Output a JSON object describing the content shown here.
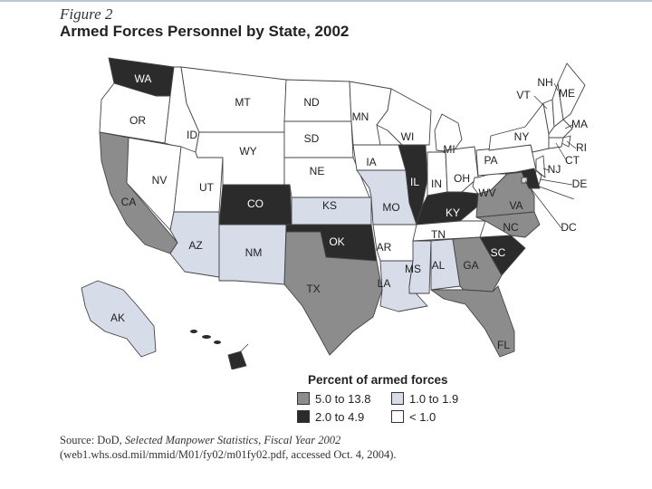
{
  "figure_label": "Figure 2",
  "title": "Armed Forces Personnel by State, 2002",
  "colors": {
    "dark": "#2b2b2b",
    "medium": "#8c8c8c",
    "light": "#d6dde8",
    "white": "#ffffff",
    "stroke": "#444444"
  },
  "legend": {
    "title": "Percent of armed forces",
    "items": [
      {
        "label": "5.0 to 13.8",
        "category": "medium"
      },
      {
        "label": "2.0 to 4.9",
        "category": "dark"
      },
      {
        "label": "1.0 to 1.9",
        "category": "light"
      },
      {
        "label": "< 1.0",
        "category": "white"
      }
    ]
  },
  "states": [
    {
      "abbr": "WA",
      "category": "dark"
    },
    {
      "abbr": "OR",
      "category": "white"
    },
    {
      "abbr": "CA",
      "category": "medium"
    },
    {
      "abbr": "ID",
      "category": "white"
    },
    {
      "abbr": "NV",
      "category": "white"
    },
    {
      "abbr": "UT",
      "category": "white"
    },
    {
      "abbr": "AZ",
      "category": "light"
    },
    {
      "abbr": "MT",
      "category": "white"
    },
    {
      "abbr": "WY",
      "category": "white"
    },
    {
      "abbr": "CO",
      "category": "dark"
    },
    {
      "abbr": "NM",
      "category": "light"
    },
    {
      "abbr": "ND",
      "category": "white"
    },
    {
      "abbr": "SD",
      "category": "white"
    },
    {
      "abbr": "NE",
      "category": "white"
    },
    {
      "abbr": "KS",
      "category": "light"
    },
    {
      "abbr": "OK",
      "category": "dark"
    },
    {
      "abbr": "TX",
      "category": "medium"
    },
    {
      "abbr": "MN",
      "category": "white"
    },
    {
      "abbr": "IA",
      "category": "white"
    },
    {
      "abbr": "MO",
      "category": "light"
    },
    {
      "abbr": "AR",
      "category": "white"
    },
    {
      "abbr": "LA",
      "category": "light"
    },
    {
      "abbr": "WI",
      "category": "white"
    },
    {
      "abbr": "IL",
      "category": "dark"
    },
    {
      "abbr": "MI",
      "category": "white"
    },
    {
      "abbr": "IN",
      "category": "white"
    },
    {
      "abbr": "OH",
      "category": "white"
    },
    {
      "abbr": "KY",
      "category": "dark"
    },
    {
      "abbr": "TN",
      "category": "white"
    },
    {
      "abbr": "MS",
      "category": "light"
    },
    {
      "abbr": "AL",
      "category": "light"
    },
    {
      "abbr": "GA",
      "category": "medium"
    },
    {
      "abbr": "FL",
      "category": "medium"
    },
    {
      "abbr": "SC",
      "category": "dark"
    },
    {
      "abbr": "NC",
      "category": "medium"
    },
    {
      "abbr": "VA",
      "category": "medium"
    },
    {
      "abbr": "WV",
      "category": "white"
    },
    {
      "abbr": "PA",
      "category": "white"
    },
    {
      "abbr": "NY",
      "category": "white"
    },
    {
      "abbr": "VT",
      "category": "white"
    },
    {
      "abbr": "NH",
      "category": "white"
    },
    {
      "abbr": "ME",
      "category": "white"
    },
    {
      "abbr": "MA",
      "category": "white"
    },
    {
      "abbr": "RI",
      "category": "white"
    },
    {
      "abbr": "CT",
      "category": "white"
    },
    {
      "abbr": "NJ",
      "category": "white"
    },
    {
      "abbr": "DE",
      "category": "white"
    },
    {
      "abbr": "MD",
      "category": "dark"
    },
    {
      "abbr": "DC",
      "category": "light"
    },
    {
      "abbr": "AK",
      "category": "light"
    },
    {
      "abbr": "HI",
      "category": "dark"
    }
  ],
  "source": {
    "prefix": "Source: DoD, ",
    "publication": "Selected Manpower Statistics, Fiscal Year 2002",
    "line2": "(web1.whs.osd.mil/mmid/M01/fy02/m01fy02.pdf, accessed Oct. 4, 2004)."
  }
}
